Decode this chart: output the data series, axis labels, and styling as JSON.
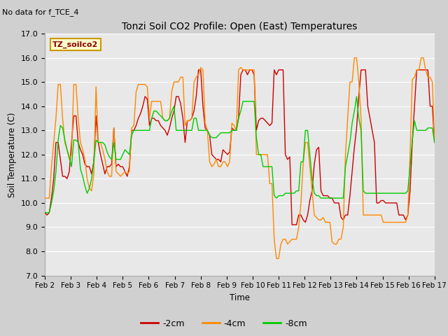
{
  "title": "Tonzi Soil CO2 Profile: Open (East) Temperatures",
  "subtitle": "No data for f_TCE_4",
  "ylabel": "Soil Temperature (C)",
  "xlabel": "Time",
  "legend_label": "TZ_soilco2",
  "ylim": [
    7.0,
    17.0
  ],
  "yticks": [
    7.0,
    8.0,
    9.0,
    10.0,
    11.0,
    12.0,
    13.0,
    14.0,
    15.0,
    16.0,
    17.0
  ],
  "xtick_labels": [
    "Feb 2",
    "Feb 3",
    "Feb 4",
    "Feb 5",
    "Feb 6",
    "Feb 7",
    "Feb 8",
    "Feb 9",
    "Feb 10",
    "Feb 11",
    "Feb 12",
    "Feb 13",
    "Feb 14",
    "Feb 15",
    "Feb 16",
    "Feb 17"
  ],
  "bg_color": "#e8e8e8",
  "grid_color": "#ffffff",
  "line_neg2cm_color": "#cc0000",
  "line_neg4cm_color": "#ff8800",
  "line_neg8cm_color": "#00cc00",
  "series_neg2cm": [
    9.6,
    9.5,
    9.6,
    10.2,
    11.0,
    12.5,
    12.5,
    11.8,
    11.1,
    11.1,
    11.0,
    11.3,
    12.5,
    13.6,
    13.6,
    12.5,
    12.2,
    12.0,
    11.6,
    11.5,
    11.5,
    11.2,
    11.7,
    13.6,
    12.5,
    12.0,
    11.6,
    11.2,
    11.5,
    11.5,
    11.6,
    13.1,
    11.5,
    11.6,
    11.5,
    11.5,
    11.3,
    11.1,
    11.5,
    13.0,
    13.0,
    13.2,
    13.5,
    13.7,
    14.0,
    14.4,
    14.3,
    13.2,
    13.5,
    13.5,
    13.4,
    13.4,
    13.2,
    13.1,
    13.0,
    12.8,
    13.1,
    13.5,
    13.8,
    14.4,
    14.4,
    14.1,
    13.5,
    12.5,
    13.4,
    13.4,
    13.5,
    13.8,
    14.4,
    15.5,
    15.5,
    14.0,
    13.1,
    13.0,
    12.8,
    12.0,
    11.9,
    11.8,
    11.8,
    11.7,
    12.2,
    12.1,
    12.0,
    12.1,
    13.1,
    13.0,
    13.0,
    13.5,
    15.3,
    15.5,
    15.5,
    15.3,
    15.5,
    15.5,
    15.3,
    13.0,
    13.4,
    13.5,
    13.5,
    13.4,
    13.3,
    13.2,
    13.3,
    15.5,
    15.3,
    15.5,
    15.5,
    15.5,
    12.0,
    11.8,
    11.9,
    9.1,
    9.1,
    9.1,
    9.5,
    9.5,
    9.3,
    9.2,
    9.5,
    10.1,
    10.5,
    11.6,
    12.2,
    12.3,
    10.5,
    10.3,
    10.3,
    10.3,
    10.2,
    10.2,
    10.0,
    10.0,
    10.0,
    9.4,
    9.3,
    9.5,
    9.5,
    10.3,
    11.3,
    12.3,
    13.1,
    14.4,
    15.5,
    15.5,
    15.5,
    14.0,
    13.5,
    13.0,
    12.5,
    10.0,
    10.0,
    10.1,
    10.1,
    10.0,
    10.0,
    10.0,
    10.0,
    10.0,
    10.0,
    9.5,
    9.5,
    9.5,
    9.3,
    9.5,
    10.5,
    12.5,
    14.0,
    15.5,
    15.5,
    15.5,
    15.5,
    15.5,
    15.5,
    14.0,
    14.0,
    12.5
  ],
  "series_neg4cm": [
    10.2,
    10.2,
    10.2,
    11.5,
    12.5,
    13.5,
    14.9,
    14.9,
    13.5,
    12.5,
    12.2,
    11.8,
    12.0,
    14.9,
    14.9,
    13.5,
    12.5,
    12.2,
    11.8,
    11.0,
    10.6,
    10.5,
    11.2,
    14.8,
    12.5,
    12.5,
    12.2,
    11.8,
    11.3,
    11.1,
    11.1,
    13.1,
    11.3,
    11.2,
    11.1,
    11.2,
    11.3,
    11.2,
    11.3,
    13.1,
    13.2,
    14.6,
    14.9,
    14.9,
    14.9,
    14.9,
    14.8,
    13.5,
    14.2,
    14.2,
    14.2,
    14.2,
    14.2,
    13.5,
    13.4,
    13.4,
    13.5,
    14.6,
    15.0,
    15.0,
    15.0,
    15.2,
    15.2,
    13.2,
    13.4,
    13.4,
    13.5,
    15.0,
    15.2,
    15.3,
    15.6,
    15.5,
    13.3,
    13.0,
    11.7,
    11.5,
    11.6,
    11.8,
    11.5,
    11.5,
    11.7,
    11.7,
    11.5,
    11.7,
    13.3,
    13.2,
    13.0,
    15.5,
    15.6,
    15.5,
    15.5,
    15.5,
    15.5,
    15.5,
    15.5,
    12.0,
    12.0,
    12.0,
    12.0,
    12.0,
    12.0,
    10.8,
    10.8,
    8.5,
    7.7,
    7.7,
    8.3,
    8.5,
    8.5,
    8.3,
    8.4,
    8.5,
    8.5,
    8.5,
    9.0,
    10.0,
    11.6,
    12.5,
    12.5,
    11.5,
    10.5,
    9.5,
    9.4,
    9.3,
    9.3,
    9.4,
    9.2,
    9.2,
    9.2,
    8.4,
    8.3,
    8.3,
    8.5,
    8.5,
    9.0,
    12.0,
    13.5,
    15.0,
    15.0,
    16.0,
    16.0,
    15.0,
    13.5,
    9.5,
    9.5,
    9.5,
    9.5,
    9.5,
    9.5,
    9.5,
    9.5,
    9.5,
    9.2,
    9.2,
    9.2,
    9.2,
    9.2,
    9.2,
    9.2,
    9.2,
    9.2,
    9.2,
    9.2,
    9.5,
    12.0,
    15.1,
    15.2,
    15.5,
    15.5,
    16.0,
    16.0,
    15.5,
    15.2,
    15.2,
    15.0,
    12.5
  ],
  "series_neg8cm": [
    9.6,
    9.6,
    9.6,
    10.0,
    10.5,
    11.3,
    12.6,
    13.2,
    13.1,
    12.6,
    12.2,
    11.9,
    11.5,
    12.6,
    12.6,
    12.5,
    11.4,
    11.1,
    10.7,
    10.4,
    10.6,
    11.0,
    11.7,
    12.6,
    12.5,
    12.5,
    12.5,
    12.4,
    12.1,
    11.9,
    11.8,
    12.5,
    11.8,
    11.8,
    11.8,
    12.0,
    12.2,
    12.1,
    12.0,
    12.8,
    13.0,
    13.0,
    13.0,
    13.0,
    13.0,
    13.0,
    13.0,
    13.0,
    13.5,
    13.8,
    13.8,
    13.7,
    13.6,
    13.5,
    13.4,
    13.4,
    13.5,
    13.8,
    14.0,
    13.0,
    13.0,
    13.0,
    13.0,
    13.0,
    13.0,
    13.0,
    13.0,
    13.5,
    13.5,
    13.0,
    13.0,
    13.0,
    13.0,
    13.0,
    12.8,
    12.7,
    12.7,
    12.7,
    12.8,
    12.9,
    12.9,
    12.9,
    12.9,
    12.9,
    13.0,
    13.0,
    13.0,
    13.5,
    13.8,
    14.2,
    14.2,
    14.2,
    14.2,
    14.2,
    14.2,
    12.7,
    12.0,
    12.0,
    11.5,
    11.5,
    11.5,
    11.5,
    11.5,
    10.3,
    10.2,
    10.3,
    10.3,
    10.3,
    10.4,
    10.4,
    10.4,
    10.4,
    10.4,
    10.5,
    10.5,
    11.7,
    11.7,
    13.0,
    13.0,
    12.0,
    11.0,
    10.4,
    10.3,
    10.3,
    10.2,
    10.2,
    10.2,
    10.2,
    10.2,
    10.2,
    10.2,
    10.2,
    10.2,
    10.2,
    10.2,
    11.5,
    12.0,
    12.5,
    13.3,
    13.8,
    14.4,
    13.5,
    13.0,
    10.5,
    10.4,
    10.4,
    10.4,
    10.4,
    10.4,
    10.4,
    10.4,
    10.4,
    10.4,
    10.4,
    10.4,
    10.4,
    10.4,
    10.4,
    10.4,
    10.4,
    10.4,
    10.4,
    10.4,
    10.5,
    11.5,
    12.6,
    13.4,
    13.0,
    13.0,
    13.0,
    13.0,
    13.0,
    13.1,
    13.1,
    13.1,
    12.5
  ]
}
